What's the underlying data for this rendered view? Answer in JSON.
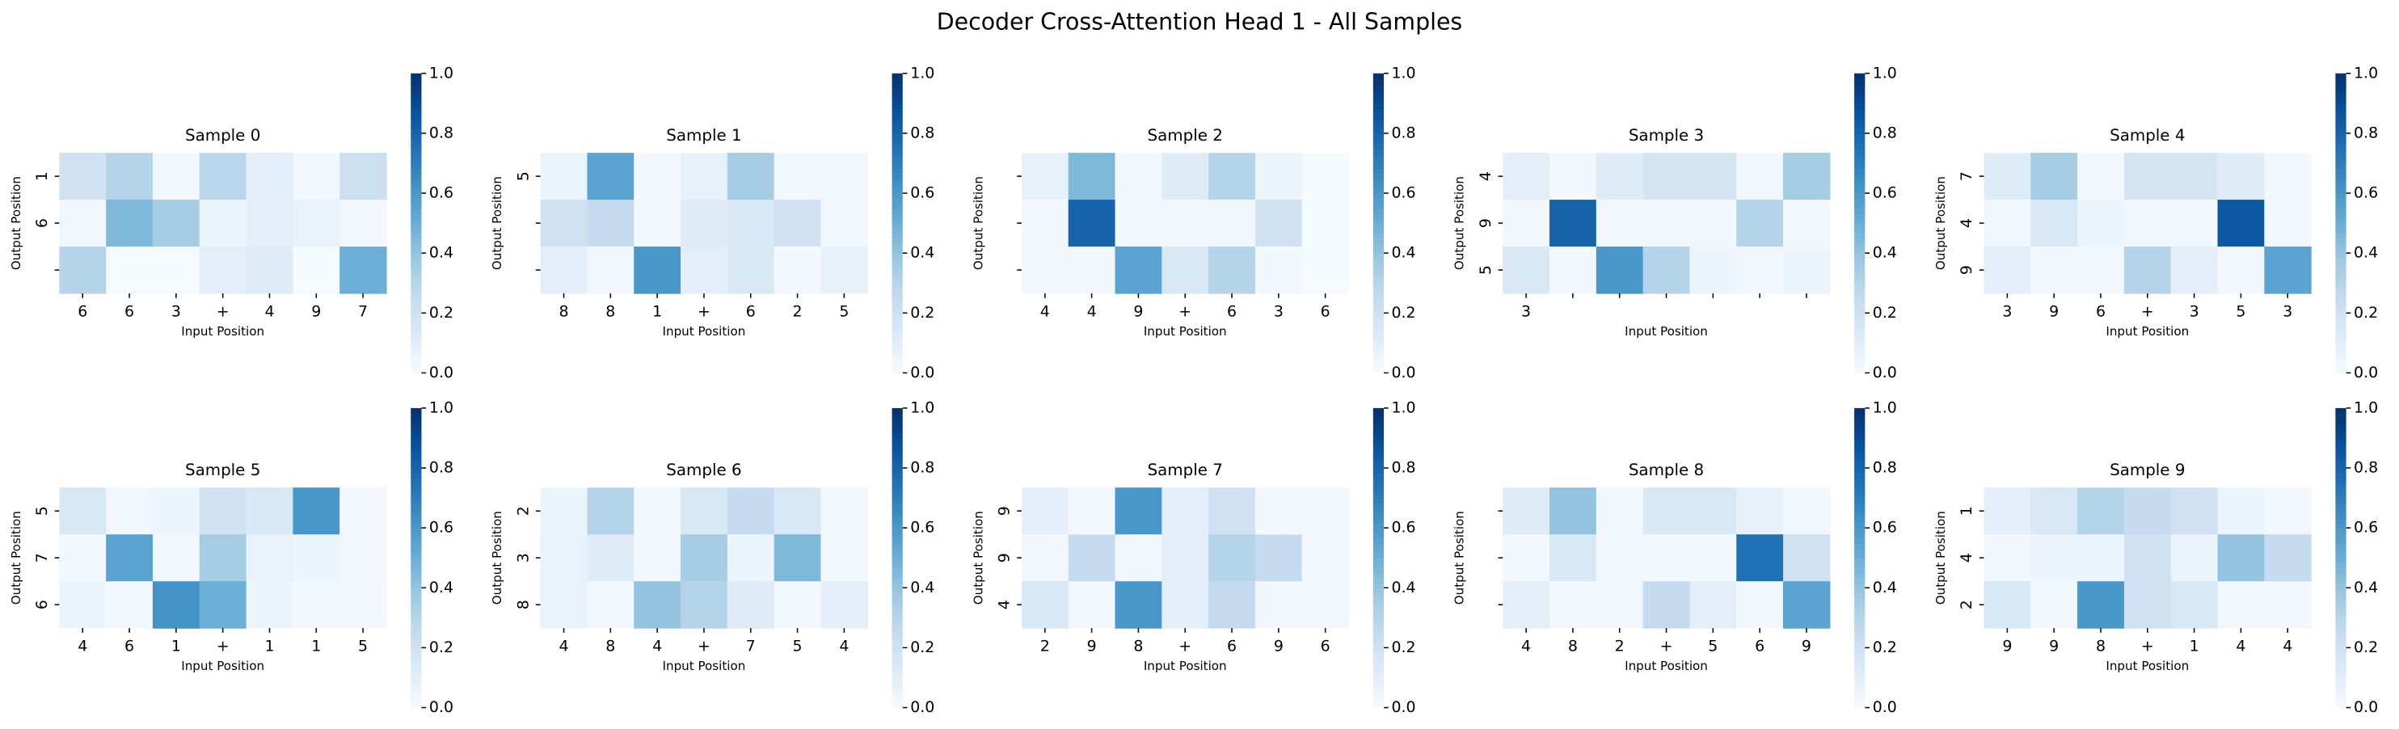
{
  "title": "Decoder Cross-Attention Head 1 - All Samples",
  "chart_data": [
    {
      "type": "heatmap",
      "title": "Sample 0",
      "xlabel": "Input Position",
      "ylabel": "Output Position",
      "cmap": "Blues",
      "x": [
        "6",
        "6",
        "3",
        "+",
        "4",
        "9",
        "7"
      ],
      "y": [
        "1",
        "6",
        null
      ],
      "values": [
        [
          0.2,
          0.3,
          0.02,
          0.28,
          0.1,
          0.03,
          0.22
        ],
        [
          0.03,
          0.45,
          0.35,
          0.05,
          0.1,
          0.07,
          0.02
        ],
        [
          0.3,
          0.01,
          0.01,
          0.1,
          0.12,
          0.01,
          0.5
        ]
      ],
      "clim": [
        0,
        1
      ],
      "cticks": [
        {
          "value": 0,
          "label": "0.0"
        },
        {
          "value": 0.2,
          "label": "0.2"
        },
        {
          "value": 0.4,
          "label": "0.4"
        },
        {
          "value": 0.6,
          "label": "0.6"
        },
        {
          "value": 0.8,
          "label": "0.8"
        },
        {
          "value": 1,
          "label": "1.0"
        }
      ]
    },
    {
      "type": "heatmap",
      "title": "Sample 1",
      "xlabel": "Input Position",
      "ylabel": "Output Position",
      "cmap": "Blues",
      "x": [
        "8",
        "8",
        "1",
        "+",
        "6",
        "2",
        "5"
      ],
      "y": [
        "5",
        null,
        null
      ],
      "values": [
        [
          0.05,
          0.55,
          0.02,
          0.08,
          0.35,
          0.02,
          0.02
        ],
        [
          0.2,
          0.25,
          0.02,
          0.12,
          0.15,
          0.2,
          0.03
        ],
        [
          0.1,
          0.02,
          0.6,
          0.1,
          0.15,
          0.02,
          0.08
        ]
      ],
      "clim": [
        0,
        1
      ],
      "cticks": [
        {
          "value": 0,
          "label": "0.0"
        },
        {
          "value": 0.2,
          "label": "0.2"
        },
        {
          "value": 0.4,
          "label": "0.4"
        },
        {
          "value": 0.6,
          "label": "0.6"
        },
        {
          "value": 0.8,
          "label": "0.8"
        },
        {
          "value": 1,
          "label": "1.0"
        }
      ]
    },
    {
      "type": "heatmap",
      "title": "Sample 2",
      "xlabel": "Input Position",
      "ylabel": "Output Position",
      "cmap": "Blues",
      "x": [
        "4",
        "4",
        "9",
        "+",
        "6",
        "3",
        "6"
      ],
      "y": [
        null,
        null,
        null
      ],
      "values": [
        [
          0.08,
          0.45,
          0.02,
          0.12,
          0.3,
          0.05,
          0.01
        ],
        [
          0.02,
          0.8,
          0.02,
          0.02,
          0.02,
          0.2,
          0.01
        ],
        [
          0.02,
          0.02,
          0.55,
          0.15,
          0.3,
          0.02,
          0.01
        ]
      ],
      "clim": [
        0,
        1
      ],
      "cticks": [
        {
          "value": 0,
          "label": "0.0"
        },
        {
          "value": 0.2,
          "label": "0.2"
        },
        {
          "value": 0.4,
          "label": "0.4"
        },
        {
          "value": 0.6,
          "label": "0.6"
        },
        {
          "value": 0.8,
          "label": "0.8"
        },
        {
          "value": 1,
          "label": "1.0"
        }
      ]
    },
    {
      "type": "heatmap",
      "title": "Sample 3",
      "xlabel": "Input Position",
      "ylabel": "Output Position",
      "cmap": "Blues",
      "x": [
        "3",
        null,
        null,
        null,
        null,
        null,
        null
      ],
      "y": [
        "4",
        "9",
        "5"
      ],
      "values": [
        [
          0.1,
          0.02,
          0.12,
          0.18,
          0.18,
          0.03,
          0.35
        ],
        [
          0.02,
          0.8,
          0.02,
          0.02,
          0.02,
          0.3,
          0.02
        ],
        [
          0.15,
          0.02,
          0.6,
          0.3,
          0.05,
          0.03,
          0.05
        ]
      ],
      "clim": [
        0,
        1
      ],
      "cticks": [
        {
          "value": 0,
          "label": "0.0"
        },
        {
          "value": 0.2,
          "label": "0.2"
        },
        {
          "value": 0.4,
          "label": "0.4"
        },
        {
          "value": 0.6,
          "label": "0.6"
        },
        {
          "value": 0.8,
          "label": "0.8"
        },
        {
          "value": 1,
          "label": "1.0"
        }
      ]
    },
    {
      "type": "heatmap",
      "title": "Sample 4",
      "xlabel": "Input Position",
      "ylabel": "Output Position",
      "cmap": "Blues",
      "x": [
        "3",
        "9",
        "6",
        "+",
        "3",
        "5",
        "3"
      ],
      "y": [
        "7",
        "4",
        "9"
      ],
      "values": [
        [
          0.12,
          0.35,
          0.02,
          0.18,
          0.18,
          0.12,
          0.03
        ],
        [
          0.03,
          0.15,
          0.05,
          0.02,
          0.02,
          0.85,
          0.02
        ],
        [
          0.1,
          0.02,
          0.02,
          0.3,
          0.1,
          0.02,
          0.55
        ]
      ],
      "clim": [
        0,
        1
      ],
      "cticks": [
        {
          "value": 0,
          "label": "0.0"
        },
        {
          "value": 0.2,
          "label": "0.2"
        },
        {
          "value": 0.4,
          "label": "0.4"
        },
        {
          "value": 0.6,
          "label": "0.6"
        },
        {
          "value": 0.8,
          "label": "0.8"
        },
        {
          "value": 1,
          "label": "1.0"
        }
      ]
    },
    {
      "type": "heatmap",
      "title": "Sample 5",
      "xlabel": "Input Position",
      "ylabel": "Output Position",
      "cmap": "Blues",
      "x": [
        "4",
        "6",
        "1",
        "+",
        "1",
        "1",
        "5"
      ],
      "y": [
        "5",
        "7",
        "6"
      ],
      "values": [
        [
          0.15,
          0.03,
          0.05,
          0.2,
          0.15,
          0.6,
          0.03
        ],
        [
          0.02,
          0.55,
          0.02,
          0.35,
          0.07,
          0.05,
          0.03
        ],
        [
          0.05,
          0.02,
          0.62,
          0.5,
          0.05,
          0.02,
          0.02
        ]
      ],
      "clim": [
        0,
        1
      ],
      "cticks": [
        {
          "value": 0,
          "label": "0.0"
        },
        {
          "value": 0.2,
          "label": "0.2"
        },
        {
          "value": 0.4,
          "label": "0.4"
        },
        {
          "value": 0.6,
          "label": "0.6"
        },
        {
          "value": 0.8,
          "label": "0.8"
        },
        {
          "value": 1,
          "label": "1.0"
        }
      ]
    },
    {
      "type": "heatmap",
      "title": "Sample 6",
      "xlabel": "Input Position",
      "ylabel": "Output Position",
      "cmap": "Blues",
      "x": [
        "4",
        "8",
        "4",
        "+",
        "7",
        "5",
        "4"
      ],
      "y": [
        "2",
        "3",
        "8"
      ],
      "values": [
        [
          0.05,
          0.3,
          0.02,
          0.15,
          0.25,
          0.15,
          0.02
        ],
        [
          0.07,
          0.12,
          0.02,
          0.35,
          0.05,
          0.45,
          0.02
        ],
        [
          0.07,
          0.02,
          0.4,
          0.3,
          0.12,
          0.02,
          0.1
        ]
      ],
      "clim": [
        0,
        1
      ],
      "cticks": [
        {
          "value": 0,
          "label": "0.0"
        },
        {
          "value": 0.2,
          "label": "0.2"
        },
        {
          "value": 0.4,
          "label": "0.4"
        },
        {
          "value": 0.6,
          "label": "0.6"
        },
        {
          "value": 0.8,
          "label": "0.8"
        },
        {
          "value": 1,
          "label": "1.0"
        }
      ]
    },
    {
      "type": "heatmap",
      "title": "Sample 7",
      "xlabel": "Input Position",
      "ylabel": "Output Position",
      "cmap": "Blues",
      "x": [
        "2",
        "9",
        "8",
        "+",
        "6",
        "9",
        "6"
      ],
      "y": [
        "9",
        "9",
        "4"
      ],
      "values": [
        [
          0.1,
          0.02,
          0.6,
          0.1,
          0.2,
          0.02,
          0.02
        ],
        [
          0.02,
          0.25,
          0.02,
          0.1,
          0.3,
          0.25,
          0.02
        ],
        [
          0.15,
          0.02,
          0.6,
          0.1,
          0.25,
          0.02,
          0.02
        ]
      ],
      "clim": [
        0,
        1
      ],
      "cticks": [
        {
          "value": 0,
          "label": "0.0"
        },
        {
          "value": 0.2,
          "label": "0.2"
        },
        {
          "value": 0.4,
          "label": "0.4"
        },
        {
          "value": 0.6,
          "label": "0.6"
        },
        {
          "value": 0.8,
          "label": "0.8"
        },
        {
          "value": 1,
          "label": "1.0"
        }
      ]
    },
    {
      "type": "heatmap",
      "title": "Sample 8",
      "xlabel": "Input Position",
      "ylabel": "Output Position",
      "cmap": "Blues",
      "x": [
        "4",
        "8",
        "2",
        "+",
        "5",
        "6",
        "9"
      ],
      "y": [
        null,
        null,
        null
      ],
      "values": [
        [
          0.12,
          0.4,
          0.02,
          0.15,
          0.15,
          0.08,
          0.03
        ],
        [
          0.02,
          0.15,
          0.02,
          0.02,
          0.02,
          0.75,
          0.2
        ],
        [
          0.1,
          0.02,
          0.02,
          0.25,
          0.1,
          0.02,
          0.55
        ]
      ],
      "clim": [
        0,
        1
      ],
      "cticks": [
        {
          "value": 0,
          "label": "0.0"
        },
        {
          "value": 0.2,
          "label": "0.2"
        },
        {
          "value": 0.4,
          "label": "0.4"
        },
        {
          "value": 0.6,
          "label": "0.6"
        },
        {
          "value": 0.8,
          "label": "0.8"
        },
        {
          "value": 1,
          "label": "1.0"
        }
      ]
    },
    {
      "type": "heatmap",
      "title": "Sample 9",
      "xlabel": "Input Position",
      "ylabel": "Output Position",
      "cmap": "Blues",
      "x": [
        "9",
        "9",
        "8",
        "+",
        "1",
        "4",
        "4"
      ],
      "y": [
        "1",
        "4",
        "2"
      ],
      "values": [
        [
          0.1,
          0.15,
          0.3,
          0.25,
          0.2,
          0.05,
          0.03
        ],
        [
          0.02,
          0.05,
          0.05,
          0.2,
          0.05,
          0.4,
          0.25
        ],
        [
          0.15,
          0.02,
          0.6,
          0.2,
          0.15,
          0.03,
          0.03
        ]
      ],
      "clim": [
        0,
        1
      ],
      "cticks": [
        {
          "value": 0,
          "label": "0.0"
        },
        {
          "value": 0.2,
          "label": "0.2"
        },
        {
          "value": 0.4,
          "label": "0.4"
        },
        {
          "value": 0.6,
          "label": "0.6"
        },
        {
          "value": 0.8,
          "label": "0.8"
        },
        {
          "value": 1,
          "label": "1.0"
        }
      ]
    }
  ]
}
